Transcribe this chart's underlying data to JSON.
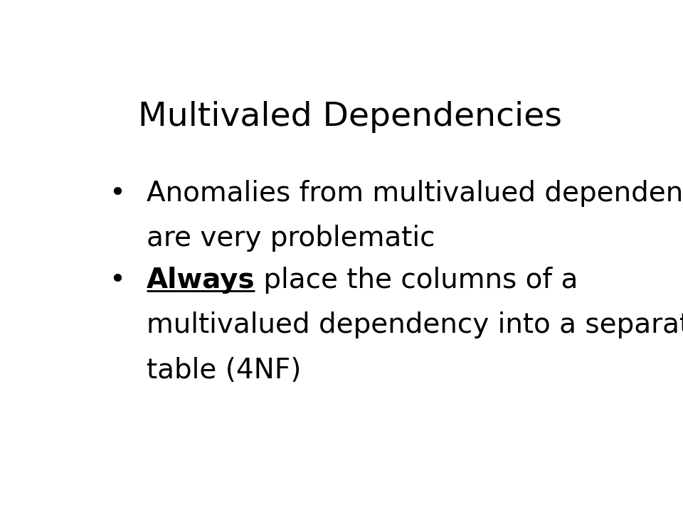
{
  "title": "Multivaled Dependencies",
  "title_fontsize": 34,
  "title_color": "#000000",
  "background_color": "#ffffff",
  "bullet1_line1": "Anomalies from multivalued dependencies",
  "bullet1_line2": "are very problematic",
  "bullet2_always": "Always",
  "bullet2_rest_line1": " place the columns of a",
  "bullet2_line2": "multivalued dependency into a separate",
  "bullet2_line3": "table (4NF)",
  "bullet_fontsize": 28,
  "bullet_color": "#000000",
  "bullet_dot": "•"
}
